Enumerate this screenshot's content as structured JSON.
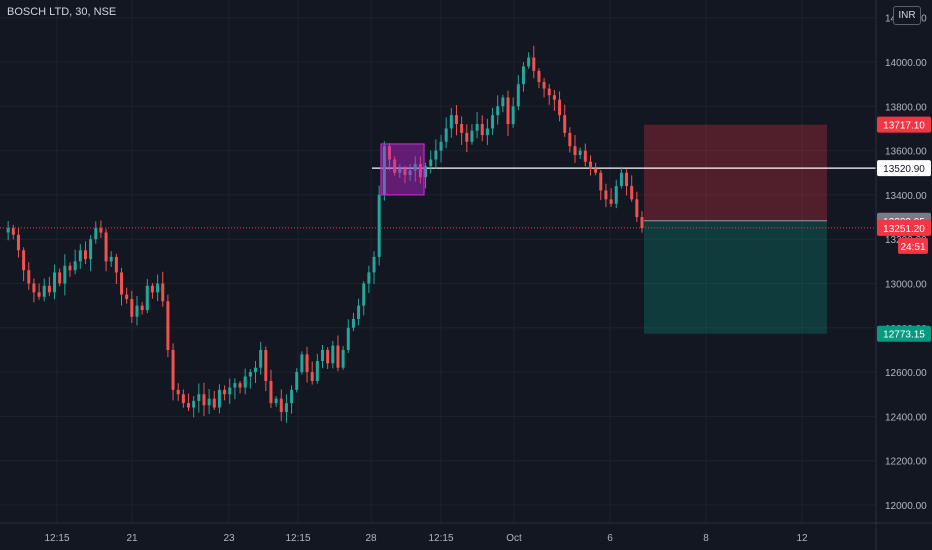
{
  "header": {
    "symbol": "BOSCH LTD, 30, NSE",
    "currency": "INR"
  },
  "colors": {
    "background": "#131722",
    "up": "#26a69a",
    "down": "#ef5350",
    "grid": "#1e222d",
    "axis_text": "#b2b5be",
    "highlight": "#c026d3"
  },
  "chart_data": {
    "type": "candlestick",
    "title": "BOSCH LTD, 30, NSE",
    "currency": "INR",
    "y_ticks": [
      12000,
      12200,
      12400,
      12600,
      12800,
      13000,
      13200,
      13400,
      13600,
      13800,
      14000,
      14200
    ],
    "y_tick_labels": [
      "12000.00",
      "12200.00",
      "12400.00",
      "12600.00",
      "12800.00",
      "13000.00",
      "13200.00",
      "13400.00",
      "13600.00",
      "13800.00",
      "14000.00",
      "14200.00"
    ],
    "ylim": [
      11920,
      14320
    ],
    "x_tick_labels": [
      "12:15",
      "21",
      "23",
      "12:15",
      "28",
      "12:15",
      "Oct",
      "6",
      "8",
      "12"
    ],
    "price_labels": [
      {
        "value": 13717.1,
        "label": "13717.10",
        "color": "#f23645"
      },
      {
        "value": 13520.9,
        "label": "13520.90",
        "color": "#ffffff",
        "text_color": "#131722"
      },
      {
        "value": 13283.05,
        "label": "13283.05",
        "color": "#787b86"
      },
      {
        "value": 13251.2,
        "label": "13251.20",
        "color": "#f23645"
      },
      {
        "value": 12773.15,
        "label": "12773.15",
        "color": "#089981"
      }
    ],
    "countdown": "24:51",
    "horizontal_line": 13520.9,
    "last_price_line": 13251.2,
    "position": {
      "entry": 13283.05,
      "stop": 13717.1,
      "target": 12773.15
    },
    "highlight_box": {
      "low": 13400,
      "high": 13630
    },
    "path": [
      13230,
      13250,
      13220,
      13150,
      13060,
      13000,
      12960,
      12940,
      12990,
      12960,
      13050,
      13000,
      13080,
      13060,
      13100,
      13150,
      13110,
      13200,
      13250,
      13230,
      13100,
      13120,
      13050,
      12950,
      12930,
      12850,
      12900,
      12880,
      12990,
      12960,
      13000,
      12920,
      12700,
      12520,
      12500,
      12460,
      12440,
      12470,
      12500,
      12450,
      12480,
      12440,
      12520,
      12500,
      12530,
      12550,
      12530,
      12580,
      12600,
      12620,
      12700,
      12560,
      12460,
      12480,
      12420,
      12460,
      12520,
      12600,
      12680,
      12600,
      12560,
      12650,
      12700,
      12640,
      12720,
      12620,
      12700,
      12800,
      12840,
      12900,
      13000,
      13050,
      13120,
      13400,
      13620,
      13560,
      13500,
      13520,
      13490,
      13510,
      13540,
      13480,
      13530,
      13560,
      13600,
      13640,
      13700,
      13760,
      13720,
      13680,
      13640,
      13690,
      13720,
      13670,
      13700,
      13760,
      13800,
      13840,
      13720,
      13800,
      13900,
      13980,
      14020,
      13960,
      13910,
      13880,
      13850,
      13830,
      13760,
      13680,
      13620,
      13580,
      13600,
      13550,
      13520,
      13500,
      13420,
      13380,
      13360,
      13440,
      13500,
      13440,
      13380,
      13300,
      13250
    ]
  }
}
